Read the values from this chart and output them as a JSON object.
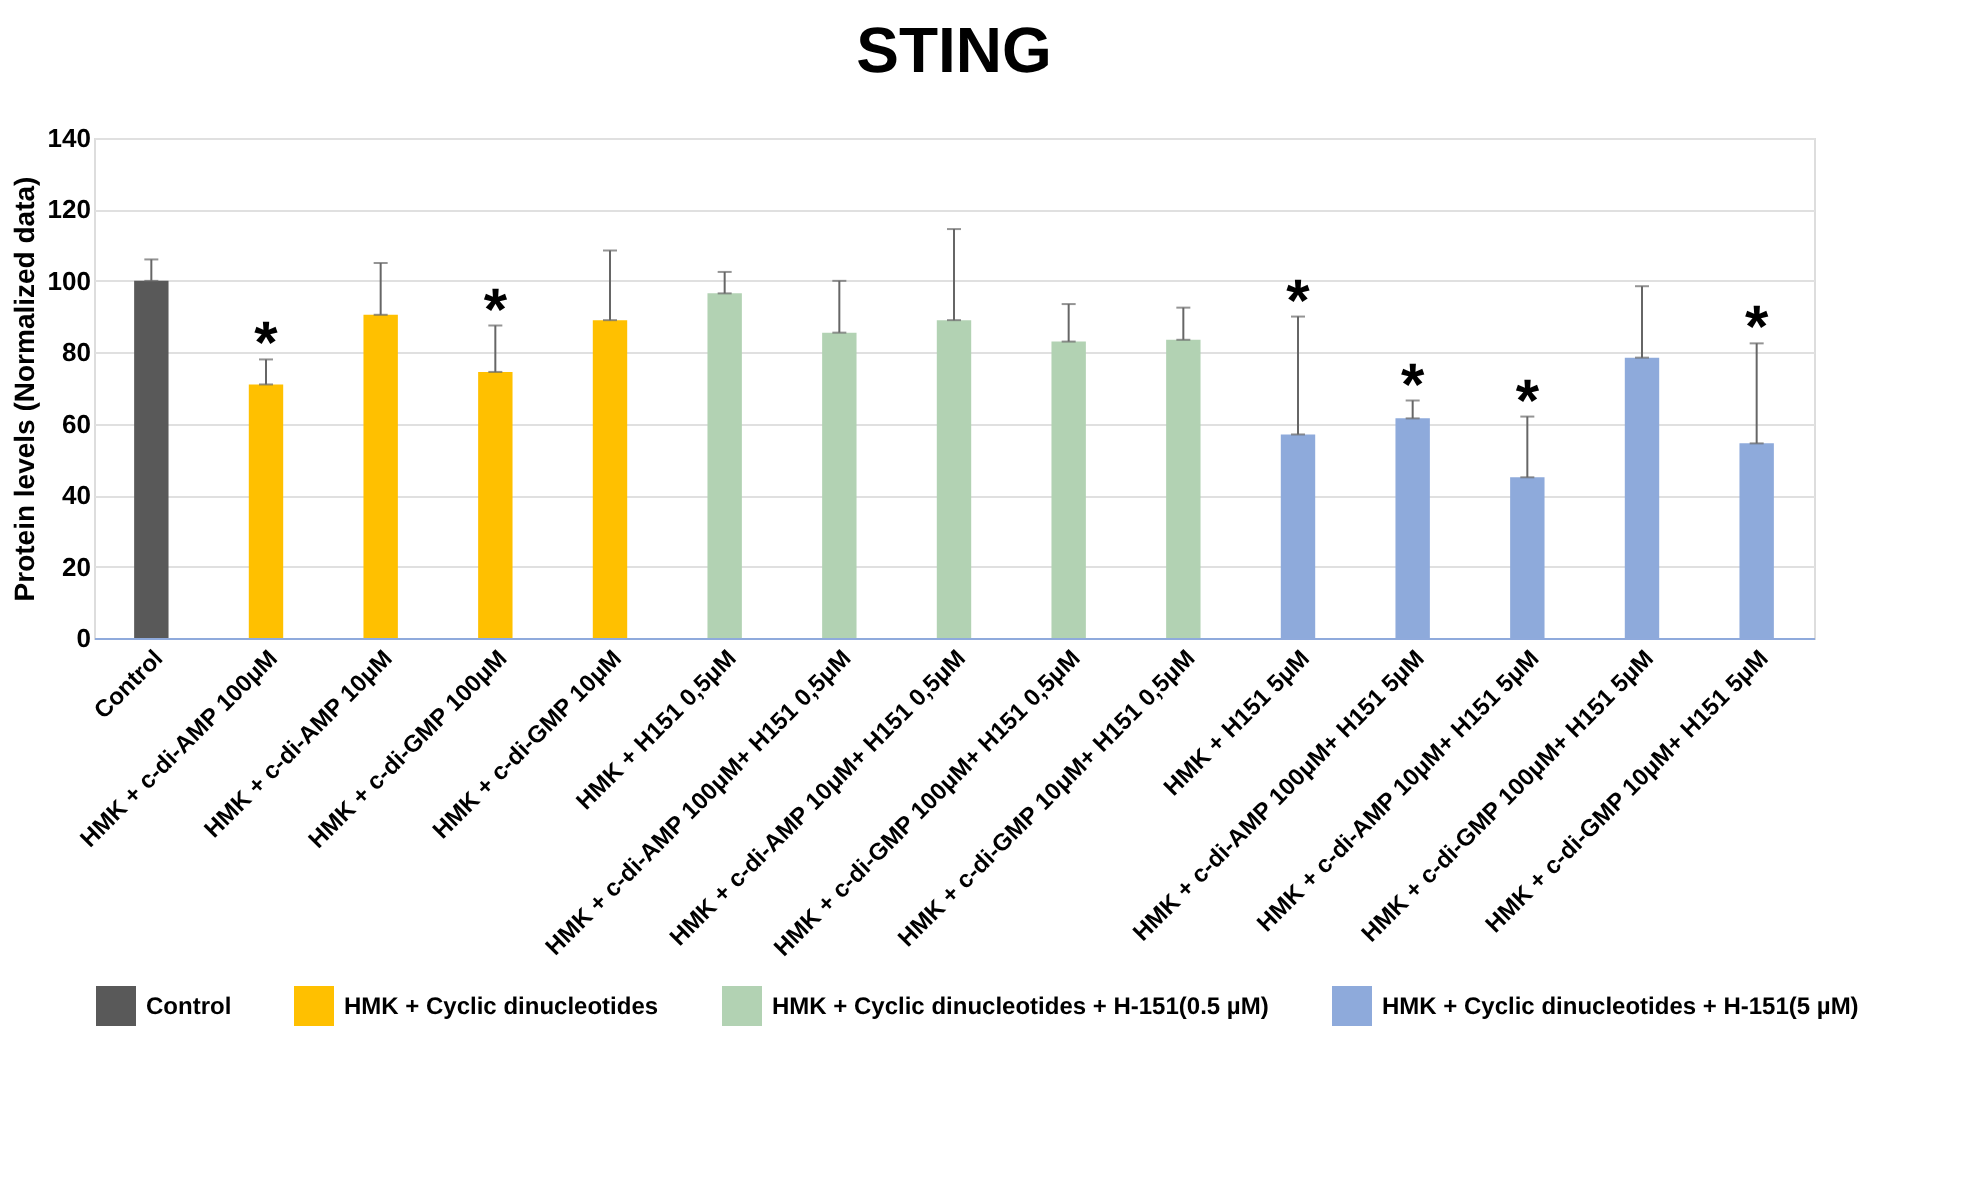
{
  "chart_data": {
    "type": "bar",
    "title": "STING",
    "ylabel": "Protein levels (Normalized data)",
    "categories": [
      "Control",
      "HMK + c-di-AMP 100μM",
      "HMK + c-di-AMP 10μM",
      "HMK + c-di-GMP 100μM",
      "HMK + c-di-GMP 10μM",
      "HMK + H151 0,5μM",
      "HMK + c-di-AMP 100μM+ H151 0,5μM",
      "HMK + c-di-AMP 10μM+ H151 0,5μM",
      "HMK + c-di-GMP 100μM+ H151 0,5μM",
      "HMK + c-di-GMP 10μM+ H151 0,5μM",
      "HMK + H151 5μM",
      "HMK + c-di-AMP 100μM+ H151 5μM",
      "HMK + c-di-AMP 10μM+ H151 5μM",
      "HMK + c-di-GMP 100μM+ H151 5μM",
      "HMK + c-di-GMP 10μM+ H151 5μM"
    ],
    "series": [
      {
        "name": "Control",
        "color": "#595959",
        "values": [
          100,
          null,
          null,
          null,
          null,
          null,
          null,
          null,
          null,
          null,
          null,
          null,
          null,
          null,
          null
        ],
        "errors": [
          [
            100,
            106
          ],
          null,
          null,
          null,
          null,
          null,
          null,
          null,
          null,
          null,
          null,
          null,
          null,
          null,
          null
        ]
      },
      {
        "name": "HMK + Cyclic dinucleotides",
        "color": "#ffc000",
        "values": [
          null,
          71,
          90.5,
          74.5,
          89,
          null,
          null,
          null,
          null,
          null,
          null,
          null,
          null,
          null,
          null
        ],
        "errors": [
          null,
          [
            71,
            78
          ],
          [
            90.5,
            105
          ],
          [
            74.5,
            87.5
          ],
          [
            89,
            108.5
          ],
          null,
          null,
          null,
          null,
          null,
          null,
          null,
          null,
          null,
          null
        ],
        "value_labels": [
          null,
          "*",
          null,
          "*",
          null,
          null,
          null,
          null,
          null,
          null,
          null,
          null,
          null,
          null,
          null
        ]
      },
      {
        "name": "HMK + Cyclic dinucleotides + H-151(0.5 µM)",
        "color": "#b2d2b3",
        "values": [
          null,
          null,
          null,
          null,
          null,
          96.5,
          85.5,
          89,
          83,
          83.5,
          null,
          null,
          null,
          null,
          null
        ],
        "errors": [
          null,
          null,
          null,
          null,
          null,
          [
            96.5,
            102.5
          ],
          [
            85.5,
            100
          ],
          [
            89,
            114.5
          ],
          [
            83,
            93.5
          ],
          [
            83.5,
            92.5
          ],
          null,
          null,
          null,
          null,
          null
        ]
      },
      {
        "name": "HMK + Cyclic dinucleotides + H-151(5 µM)",
        "color": "#8eaadb",
        "values": [
          null,
          null,
          null,
          null,
          null,
          null,
          null,
          null,
          null,
          null,
          57,
          61.5,
          45,
          78.5,
          54.5
        ],
        "errors": [
          null,
          null,
          null,
          null,
          null,
          null,
          null,
          null,
          null,
          null,
          [
            57,
            90
          ],
          [
            61.5,
            66.5
          ],
          [
            45,
            62
          ],
          [
            78.5,
            98.5
          ],
          [
            54.5,
            82.5
          ]
        ],
        "value_labels": [
          null,
          null,
          null,
          null,
          null,
          null,
          null,
          null,
          null,
          null,
          "*",
          "*",
          "*",
          null,
          "*"
        ]
      }
    ],
    "ylim": [
      0,
      140
    ],
    "yticks": [
      0,
      20,
      40,
      60,
      80,
      100,
      120,
      140
    ],
    "grid": "y",
    "legend": "bottom"
  }
}
